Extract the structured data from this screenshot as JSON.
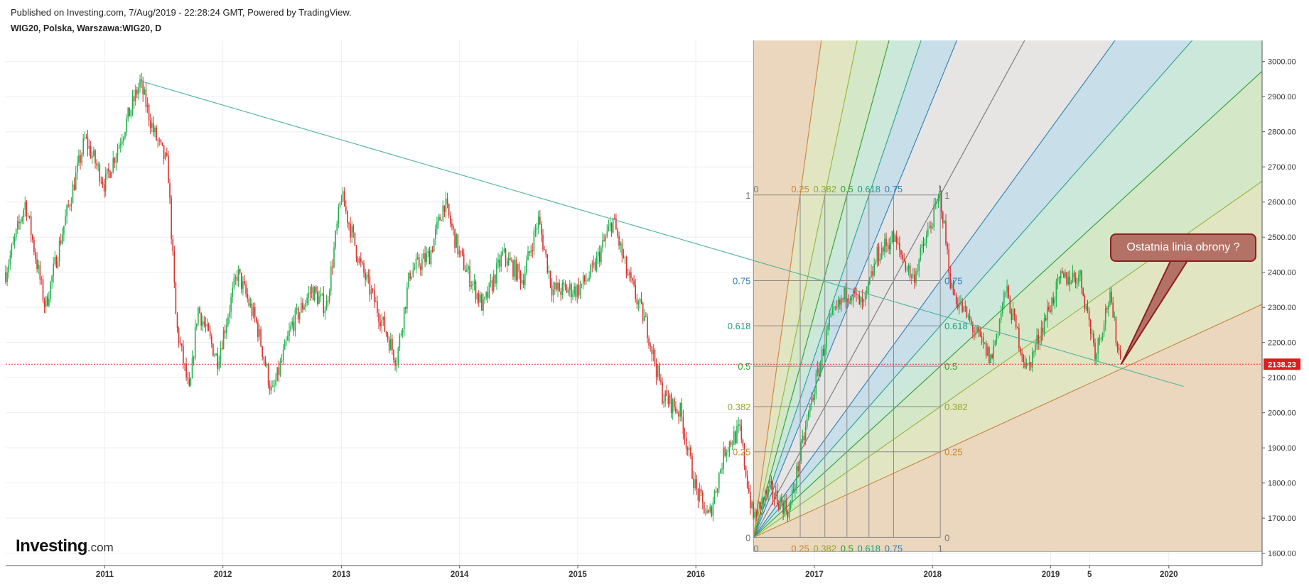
{
  "header": {
    "published": "Published on Investing.com, 7/Aug/2019 - 22:28:24 GMT, Powered by TradingView.",
    "symbol": "WIG20, Polska, Warszawa:WIG20, D"
  },
  "logo": {
    "brand": "Investing",
    "suffix": ".com"
  },
  "annotation": {
    "text": "Ostatnia linia obrony ?"
  },
  "colors": {
    "bull": "#22b14c",
    "bear": "#d9302c",
    "price_line": "#e03030",
    "trendline": "#4fb5a0",
    "fan_red": "#c9863e",
    "fan_olive": "#8fb83a",
    "fan_green": "#2e9e2e",
    "fan_teal": "#29a38a",
    "fan_blue": "#2f7fb5",
    "fan_gray": "#777777"
  },
  "chart_data": {
    "type": "candlestick",
    "x_axis": {
      "labels": [
        "2011",
        "2012",
        "2013",
        "2014",
        "2015",
        "2016",
        "2017",
        "2018",
        "2019",
        "5",
        "2020"
      ]
    },
    "y_axis": {
      "labels": [
        "1600.00",
        "1700.00",
        "1800.00",
        "1900.00",
        "2000.00",
        "2100.00",
        "2200.00",
        "2300.00",
        "2400.00",
        "2500.00",
        "2600.00",
        "2700.00",
        "2800.00",
        "2900.00",
        "3000.00"
      ],
      "ylim": [
        1565,
        3060
      ]
    },
    "last_price": "2138.23",
    "price_path": [
      [
        "2010-03-01",
        2400
      ],
      [
        "2010-05-01",
        2600
      ],
      [
        "2010-07-01",
        2300
      ],
      [
        "2010-09-01",
        2550
      ],
      [
        "2010-11-01",
        2780
      ],
      [
        "2011-01-01",
        2650
      ],
      [
        "2011-04-20",
        2940
      ],
      [
        "2011-06-01",
        2800
      ],
      [
        "2011-07-15",
        2700
      ],
      [
        "2011-08-10",
        2250
      ],
      [
        "2011-09-20",
        2050
      ],
      [
        "2011-10-15",
        2300
      ],
      [
        "2011-12-15",
        2150
      ],
      [
        "2012-02-15",
        2400
      ],
      [
        "2012-04-15",
        2250
      ],
      [
        "2012-06-01",
        2050
      ],
      [
        "2012-08-01",
        2250
      ],
      [
        "2012-10-01",
        2350
      ],
      [
        "2012-11-15",
        2300
      ],
      [
        "2013-01-01",
        2620
      ],
      [
        "2013-03-01",
        2420
      ],
      [
        "2013-04-20",
        2300
      ],
      [
        "2013-06-20",
        2150
      ],
      [
        "2013-08-01",
        2400
      ],
      [
        "2013-10-01",
        2450
      ],
      [
        "2013-11-15",
        2600
      ],
      [
        "2014-01-01",
        2450
      ],
      [
        "2014-03-15",
        2300
      ],
      [
        "2014-05-15",
        2450
      ],
      [
        "2014-07-15",
        2380
      ],
      [
        "2014-09-01",
        2550
      ],
      [
        "2014-10-15",
        2350
      ],
      [
        "2015-01-01",
        2350
      ],
      [
        "2015-02-15",
        2400
      ],
      [
        "2015-04-20",
        2550
      ],
      [
        "2015-06-01",
        2400
      ],
      [
        "2015-08-01",
        2250
      ],
      [
        "2015-09-20",
        2050
      ],
      [
        "2015-11-15",
        2000
      ],
      [
        "2016-01-01",
        1780
      ],
      [
        "2016-02-10",
        1700
      ],
      [
        "2016-04-01",
        1900
      ],
      [
        "2016-05-15",
        1950
      ],
      [
        "2016-06-25",
        1700
      ],
      [
        "2016-08-15",
        1780
      ],
      [
        "2016-10-15",
        1720
      ],
      [
        "2016-12-15",
        2000
      ],
      [
        "2017-02-15",
        2250
      ],
      [
        "2017-04-15",
        2350
      ],
      [
        "2017-06-01",
        2300
      ],
      [
        "2017-07-15",
        2450
      ],
      [
        "2017-09-01",
        2500
      ],
      [
        "2017-11-01",
        2380
      ],
      [
        "2018-01-25",
        2620
      ],
      [
        "2018-03-01",
        2350
      ],
      [
        "2018-05-01",
        2250
      ],
      [
        "2018-07-01",
        2150
      ],
      [
        "2018-08-15",
        2350
      ],
      [
        "2018-10-20",
        2120
      ],
      [
        "2018-12-15",
        2270
      ],
      [
        "2019-02-01",
        2380
      ],
      [
        "2019-04-01",
        2390
      ],
      [
        "2019-05-20",
        2170
      ],
      [
        "2019-07-01",
        2330
      ],
      [
        "2019-08-07",
        2138
      ]
    ],
    "trendline": {
      "from": [
        "2011-04-20",
        2945
      ],
      "to": [
        "2020-02-15",
        2075
      ]
    },
    "fib_levels": {
      "left": [
        "1",
        "0.75",
        "0.618",
        "0.5",
        "0.382",
        "0.25",
        "0"
      ],
      "right": [
        "1",
        "0.75",
        "0.618",
        "0.5",
        "0.382",
        "0.25",
        "0"
      ],
      "top": [
        "0",
        "0.25",
        "0.382",
        "0.5",
        "0.618",
        "0.75",
        "1"
      ],
      "bottom": [
        "0",
        "0.25",
        "0.382",
        "0.5",
        "0.618",
        "0.75",
        "1"
      ]
    },
    "gann_fan": {
      "origin": [
        "2016-06-27",
        1645
      ],
      "extent": [
        "2018-01-25",
        2620
      ]
    }
  }
}
